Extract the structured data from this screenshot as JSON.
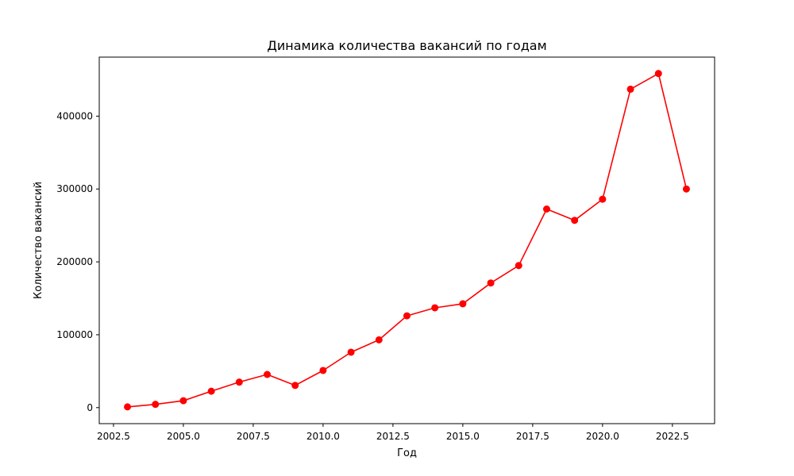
{
  "chart_data": {
    "type": "line",
    "title": "Динамика количества вакансий по годам",
    "xlabel": "Год",
    "ylabel": "Количество вакансий",
    "xlim": [
      2001.99,
      2024.01
    ],
    "ylim": [
      -22000,
      481000
    ],
    "x_ticks": [
      2002.5,
      2005.0,
      2007.5,
      2010.0,
      2012.5,
      2015.0,
      2017.5,
      2020.0,
      2022.5
    ],
    "x_tick_labels": [
      "2002.5",
      "2005.0",
      "2007.5",
      "2010.0",
      "2012.5",
      "2015.0",
      "2017.5",
      "2020.0",
      "2022.5"
    ],
    "y_ticks": [
      0,
      100000,
      200000,
      300000,
      400000
    ],
    "y_tick_labels": [
      "0",
      "100000",
      "200000",
      "300000",
      "400000"
    ],
    "grid": false,
    "series": [
      {
        "color": "#ff0000",
        "marker": "circle",
        "x": [
          2003,
          2004,
          2005,
          2006,
          2007,
          2008,
          2009,
          2010,
          2011,
          2012,
          2013,
          2014,
          2015,
          2016,
          2017,
          2018,
          2019,
          2020,
          2021,
          2022,
          2023
        ],
        "y": [
          1000,
          4500,
          9500,
          22500,
          35000,
          45500,
          30500,
          51000,
          76000,
          93000,
          126000,
          137000,
          142500,
          171000,
          195000,
          272500,
          257000,
          286000,
          437000,
          458500,
          300000
        ]
      }
    ]
  }
}
